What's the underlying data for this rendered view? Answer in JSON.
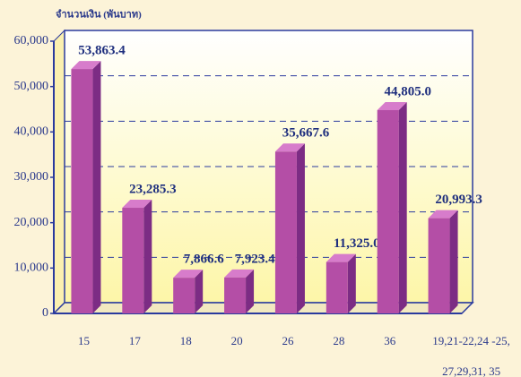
{
  "chart_data": {
    "type": "bar3d",
    "y_axis_label": "จำนวนเงิน (พันบาท)",
    "categories": [
      "15",
      "17",
      "18",
      "20",
      "26",
      "28",
      "36",
      "19,21-22,24 -25, 27,29,31, 35"
    ],
    "values": [
      53863.4,
      23285.3,
      7866.6,
      7923.4,
      35667.6,
      11325.0,
      44805.0,
      20993.3
    ],
    "value_labels": [
      "53,863.4",
      "23,285.3",
      "7,866.6",
      "7,923.4",
      "35,667.6",
      "11,325.0",
      "44,805.0",
      "20,993.3"
    ],
    "color": "#b44ea6",
    "ylim": [
      0,
      60000
    ],
    "yticks": [
      0,
      {
        "value": 10000,
        "label": "10,000"
      },
      {
        "value": 20000,
        "label": "20,000"
      },
      {
        "value": 30000,
        "label": "30,000"
      },
      {
        "value": 40000,
        "label": "40,000"
      },
      {
        "value": 50000,
        "label": "50,000"
      },
      {
        "value": 60000,
        "label": "60,000"
      }
    ],
    "grid": true
  }
}
